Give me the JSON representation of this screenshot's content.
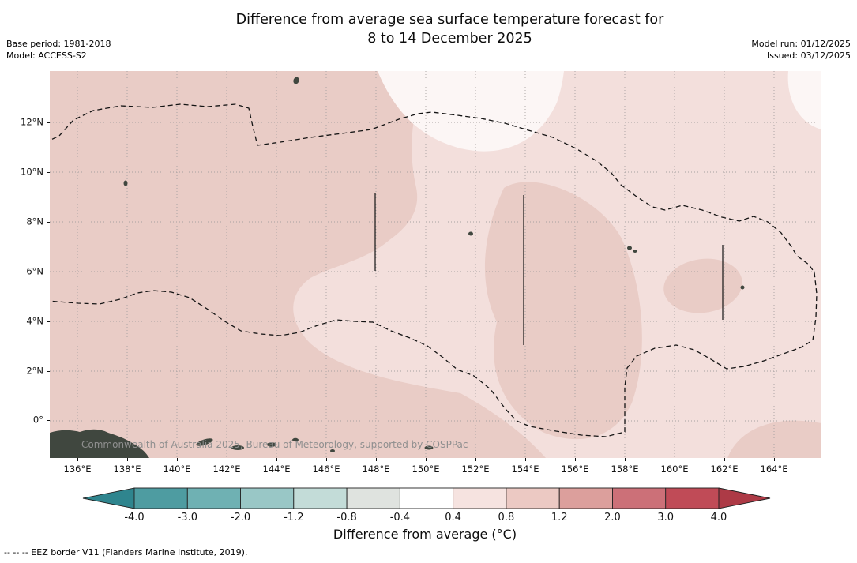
{
  "header": {
    "title_line1": "Difference from average sea surface temperature forecast for",
    "title_line2": "8 to 14 December 2025",
    "base_period": "Base period: 1981-2018",
    "model": "Model: ACCESS-S2",
    "model_run": "Model run: 01/12/2025",
    "issued": "Issued: 03/12/2025"
  },
  "map": {
    "watermark": "Commonwealth of Australia 2025, Bureau of Meteorology, supported by COSPPac",
    "lat_ticks": [
      "12°N",
      "10°N",
      "8°N",
      "6°N",
      "4°N",
      "2°N",
      "0°"
    ],
    "lon_ticks": [
      "136°E",
      "138°E",
      "140°E",
      "142°E",
      "144°E",
      "146°E",
      "148°E",
      "150°E",
      "152°E",
      "154°E",
      "156°E",
      "158°E",
      "160°E",
      "162°E",
      "164°E"
    ],
    "fill_colors": {
      "anom_04_08": "#f3dfdc",
      "anom_08_12": "#e9ccc6",
      "anom_near_zero": "#fcf6f5",
      "land": "#40473f"
    }
  },
  "colorbar": {
    "label": "Difference from average (°C)",
    "tick_labels": [
      "-4.0",
      "-3.0",
      "-2.0",
      "-1.2",
      "-0.8",
      "-0.4",
      "0.4",
      "0.8",
      "1.2",
      "2.0",
      "3.0",
      "4.0"
    ],
    "colors": [
      "#4e9ca1",
      "#6fb1b3",
      "#99c7c6",
      "#c3dcd8",
      "#dfe3df",
      "#ffffff",
      "#f6e3e0",
      "#ecc9c3",
      "#dc9f9c",
      "#cc7078",
      "#c04b57"
    ],
    "left_arrow_color": "#2f858e",
    "right_arrow_color": "#ad3a46"
  },
  "footer": {
    "eez_note": "--  --  -- EEZ border V11 (Flanders Marine Institute, 2019)."
  },
  "chart_data": {
    "type": "heatmap",
    "title": "Difference from average sea surface temperature forecast for 8 to 14 December 2025",
    "variable": "Sea surface temperature difference from average",
    "units": "°C",
    "base_period": "1981-2018",
    "model": "ACCESS-S2",
    "x_ticks": [
      "136°E",
      "138°E",
      "140°E",
      "142°E",
      "144°E",
      "146°E",
      "148°E",
      "150°E",
      "152°E",
      "154°E",
      "156°E",
      "158°E",
      "160°E",
      "162°E",
      "164°E"
    ],
    "y_ticks": [
      "0°",
      "2°N",
      "4°N",
      "6°N",
      "8°N",
      "10°N",
      "12°N"
    ],
    "colorbar_levels": [
      -4.0,
      -3.0,
      -2.0,
      -1.2,
      -0.8,
      -0.4,
      0.4,
      0.8,
      1.2,
      2.0,
      3.0,
      4.0
    ],
    "colorbar_label": "Difference from average (°C)",
    "grid": true,
    "legend_position": "bottom",
    "anomaly_summary": [
      {
        "region": "large area west of ~151°E",
        "anomaly_band_c": "+0.8 to +1.2"
      },
      {
        "region": "central blob ~153°E-158°E, 0°-8°N",
        "anomaly_band_c": "+0.8 to +1.2"
      },
      {
        "region": "small patch ~161°E-163°E near 5°N",
        "anomaly_band_c": "+0.8 to +1.2"
      },
      {
        "region": "top-centre ~149°E-152°E above 11°N and eastern areas",
        "anomaly_band_c": "+0.4 to +0.8"
      }
    ]
  }
}
